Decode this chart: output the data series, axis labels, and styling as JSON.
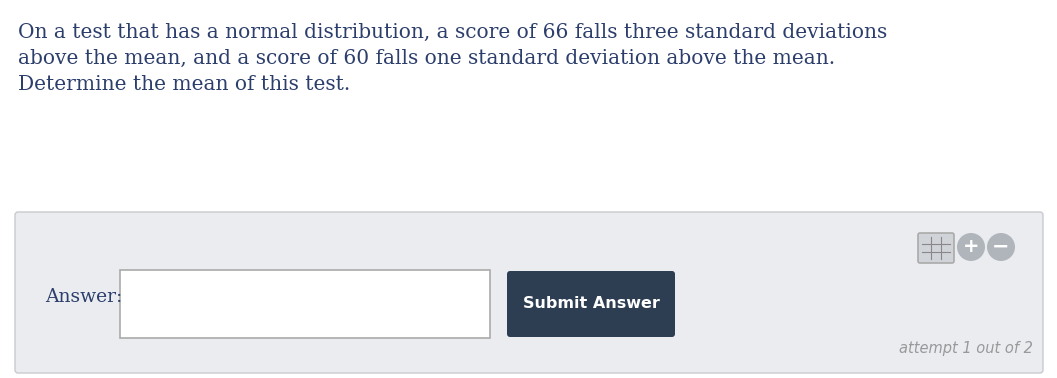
{
  "bg_color": "#ffffff",
  "panel_color": "#eaecf0",
  "panel_border_color": "#c8cace",
  "question_text_line1": "On a test that has a normal distribution, a score of 66 falls three standard deviations",
  "question_text_line2": "above the mean, and a score of 60 falls one standard deviation above the mean.",
  "question_text_line3": "Determine the mean of this test.",
  "question_color": "#2c3e6b",
  "question_fontsize": 14.5,
  "answer_label": "Answer:",
  "answer_label_color": "#2c3e6b",
  "answer_label_fontsize": 13.5,
  "submit_button_text": "Submit Answer",
  "submit_button_color": "#2d3d52",
  "submit_button_text_color": "#ffffff",
  "submit_button_fontsize": 11.5,
  "attempt_text": "attempt 1 out of 2",
  "attempt_color": "#999999",
  "attempt_fontsize": 10.5,
  "input_box_color": "#ffffff",
  "input_border_color": "#aaaaaa",
  "plus_circle_color": "#b0b5bc",
  "minus_circle_color": "#b0b5bc",
  "calc_icon_color": "#b0b5bc"
}
